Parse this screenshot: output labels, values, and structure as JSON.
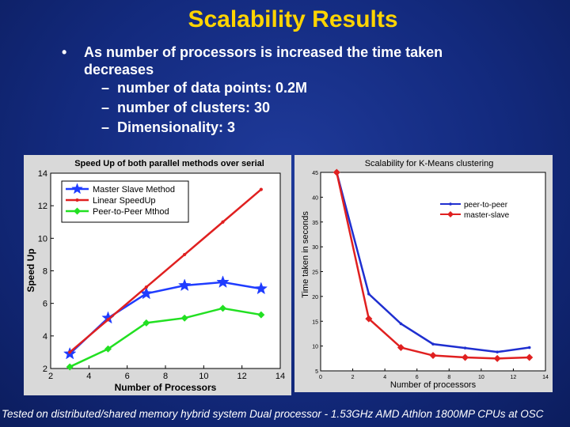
{
  "slide": {
    "title": "Scalability Results",
    "bullet_main_1": "As number of processors is increased the time taken",
    "bullet_main_2": "decreases",
    "sub_items": [
      "number of data points: 0.2M",
      "number of clusters: 30",
      "Dimensionality: 3"
    ],
    "footer": "Tested on distributed/shared memory hybrid system Dual processor - 1.53GHz AMD Athlon 1800MP CPUs at OSC",
    "colors": {
      "title": "#ffd400",
      "background": "#132a7e"
    }
  },
  "chart_data": [
    {
      "type": "line",
      "title": "Speed Up of both parallel methods over serial",
      "xlabel": "Number of Processors",
      "ylabel": "Speed Up",
      "xlim": [
        2,
        14
      ],
      "ylim": [
        2,
        14
      ],
      "xticks": [
        2,
        4,
        6,
        8,
        10,
        12,
        14
      ],
      "yticks": [
        2,
        4,
        6,
        8,
        10,
        12,
        14
      ],
      "legend_position": "top-left",
      "series": [
        {
          "name": "Master Slave Method",
          "color": "#1f3cff",
          "marker": "star",
          "x": [
            3,
            5,
            7,
            9,
            11,
            13
          ],
          "y": [
            2.9,
            5.1,
            6.6,
            7.1,
            7.3,
            6.9
          ]
        },
        {
          "name": "Linear SpeedUp",
          "color": "#e02020",
          "marker": "dot",
          "x": [
            3,
            5,
            7,
            9,
            11,
            13
          ],
          "y": [
            3,
            5,
            7,
            9,
            11,
            13
          ]
        },
        {
          "name": "Peer-to-Peer Mthod",
          "color": "#22e022",
          "marker": "diamond",
          "x": [
            3,
            5,
            7,
            9,
            11,
            13
          ],
          "y": [
            2.1,
            3.2,
            4.8,
            5.1,
            5.7,
            5.3
          ]
        }
      ]
    },
    {
      "type": "line",
      "title": "Scalability for K-Means clustering",
      "xlabel": "Number of processors",
      "ylabel": "Time taken in seconds",
      "xlim": [
        0,
        14
      ],
      "ylim": [
        5,
        45
      ],
      "xticks": [
        0,
        2,
        4,
        6,
        8,
        10,
        12,
        14
      ],
      "yticks": [
        5,
        10,
        15,
        20,
        25,
        30,
        35,
        40,
        45
      ],
      "legend_position": "top-right",
      "series": [
        {
          "name": "peer-to-peer",
          "color": "#1f2fd0",
          "marker": "dot",
          "x": [
            1,
            3,
            5,
            7,
            9,
            11,
            13
          ],
          "y": [
            45,
            20.5,
            14.5,
            10.4,
            9.6,
            8.8,
            9.7
          ]
        },
        {
          "name": "master-slave",
          "color": "#e02020",
          "marker": "diamond",
          "x": [
            1,
            3,
            5,
            7,
            9,
            11,
            13
          ],
          "y": [
            45,
            15.5,
            9.7,
            8.1,
            7.7,
            7.5,
            7.7
          ]
        }
      ]
    }
  ]
}
